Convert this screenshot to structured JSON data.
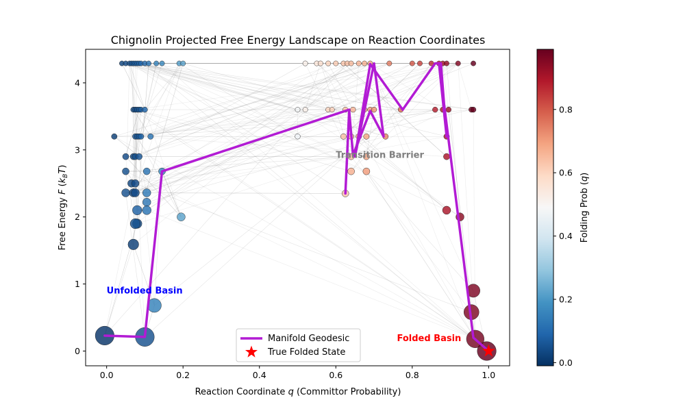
{
  "chart_data": {
    "type": "scatter",
    "title": "Chignolin Projected Free Energy Landscape on Reaction Coordinates",
    "xlabel": "Reaction Coordinate q (Committor Probability)",
    "ylabel": "Free Energy F (k_BT)",
    "xlim": [
      -0.055,
      1.055
    ],
    "ylim": [
      -0.22,
      4.5
    ],
    "xticks": [
      0.0,
      0.2,
      0.4,
      0.6,
      0.8,
      1.0
    ],
    "xtick_labels": [
      "0.0",
      "0.2",
      "0.4",
      "0.6",
      "0.8",
      "1.0"
    ],
    "yticks": [
      0,
      1,
      2,
      3,
      4
    ],
    "ytick_labels": [
      "0",
      "1",
      "2",
      "3",
      "4"
    ],
    "grid": false,
    "colorbar": {
      "label": "Folding Prob (q)",
      "colormap": "RdBu_r",
      "range": [
        -0.01,
        0.99
      ],
      "ticks": [
        0.0,
        0.2,
        0.4,
        0.6,
        0.8
      ],
      "tick_labels": [
        "0.0",
        "0.2",
        "0.4",
        "0.6",
        "0.8"
      ]
    },
    "annotations": [
      {
        "text": "Unfolded Basin",
        "x": 0.0,
        "y": 0.86,
        "color": "#0000ff",
        "anchor": "start"
      },
      {
        "text": "Transition Barrier",
        "x": 0.6,
        "y": 2.88,
        "color": "#808080",
        "anchor": "start"
      },
      {
        "text": "Folded Basin",
        "x": 0.76,
        "y": 0.15,
        "color": "#ff0000",
        "anchor": "start"
      }
    ],
    "legend": {
      "position": "bottom-center",
      "entries": [
        "Manifold Geodesic",
        "True Folded State"
      ]
    },
    "geodesic": {
      "name": "Manifold Geodesic",
      "color": "#b21bd4",
      "points": [
        [
          -0.005,
          0.23
        ],
        [
          0.1,
          0.21
        ],
        [
          0.145,
          2.68
        ],
        [
          0.635,
          3.6
        ],
        [
          0.625,
          2.35
        ],
        [
          0.635,
          3.58
        ],
        [
          0.645,
          2.92
        ],
        [
          0.69,
          3.58
        ],
        [
          0.725,
          3.2
        ],
        [
          0.7,
          4.29
        ],
        [
          0.65,
          2.9
        ],
        [
          0.69,
          4.28
        ],
        [
          0.775,
          3.6
        ],
        [
          0.86,
          4.29
        ],
        [
          0.875,
          4.29
        ],
        [
          0.89,
          3.2
        ],
        [
          0.87,
          4.29
        ],
        [
          0.96,
          0.2
        ],
        [
          1.0,
          0.0
        ]
      ]
    },
    "true_folded_state": {
      "name": "True Folded State",
      "x": 1.0,
      "y": 0.0,
      "color": "#ff0000"
    },
    "states": [
      [
        -0.005,
        0.23,
        0.0,
        3.0
      ],
      [
        0.1,
        0.21,
        0.05,
        3.0
      ],
      [
        0.125,
        0.68,
        0.15,
        2.2
      ],
      [
        0.07,
        1.59,
        0.02,
        1.7
      ],
      [
        0.075,
        1.9,
        0.05,
        1.6
      ],
      [
        0.08,
        1.9,
        0.05,
        1.5
      ],
      [
        0.08,
        2.1,
        0.08,
        1.5
      ],
      [
        0.105,
        2.1,
        0.12,
        1.4
      ],
      [
        0.105,
        2.22,
        0.13,
        1.3
      ],
      [
        0.105,
        2.36,
        0.14,
        1.3
      ],
      [
        0.05,
        2.36,
        0.05,
        1.3
      ],
      [
        0.07,
        2.36,
        0.03,
        1.3
      ],
      [
        0.075,
        2.36,
        0.04,
        1.3
      ],
      [
        0.065,
        2.5,
        0.03,
        1.2
      ],
      [
        0.075,
        2.5,
        0.04,
        1.2
      ],
      [
        0.05,
        2.68,
        0.05,
        1.1
      ],
      [
        0.105,
        2.68,
        0.12,
        1.1
      ],
      [
        0.145,
        2.68,
        0.16,
        1.1
      ],
      [
        0.195,
        2.0,
        0.22,
        1.3
      ],
      [
        0.05,
        2.9,
        0.04,
        1.0
      ],
      [
        0.07,
        2.9,
        0.03,
        1.0
      ],
      [
        0.075,
        2.9,
        0.05,
        1.0
      ],
      [
        0.085,
        2.9,
        0.06,
        1.0
      ],
      [
        0.02,
        3.2,
        0.02,
        0.9
      ],
      [
        0.075,
        3.2,
        0.05,
        0.9
      ],
      [
        0.08,
        3.2,
        0.06,
        0.9
      ],
      [
        0.085,
        3.2,
        0.07,
        0.9
      ],
      [
        0.09,
        3.2,
        0.08,
        0.9
      ],
      [
        0.115,
        3.2,
        0.12,
        0.9
      ],
      [
        0.07,
        3.6,
        0.03,
        0.85
      ],
      [
        0.075,
        3.6,
        0.04,
        0.85
      ],
      [
        0.08,
        3.6,
        0.05,
        0.85
      ],
      [
        0.085,
        3.6,
        0.06,
        0.85
      ],
      [
        0.09,
        3.6,
        0.07,
        0.85
      ],
      [
        0.1,
        3.6,
        0.09,
        0.85
      ],
      [
        0.04,
        4.29,
        0.03,
        0.8
      ],
      [
        0.05,
        4.29,
        0.04,
        0.8
      ],
      [
        0.06,
        4.29,
        0.05,
        0.8
      ],
      [
        0.065,
        4.29,
        0.06,
        0.8
      ],
      [
        0.07,
        4.29,
        0.06,
        0.8
      ],
      [
        0.075,
        4.29,
        0.07,
        0.8
      ],
      [
        0.08,
        4.29,
        0.07,
        0.8
      ],
      [
        0.085,
        4.29,
        0.08,
        0.8
      ],
      [
        0.09,
        4.29,
        0.09,
        0.8
      ],
      [
        0.1,
        4.29,
        0.1,
        0.8
      ],
      [
        0.11,
        4.29,
        0.12,
        0.8
      ],
      [
        0.13,
        4.29,
        0.15,
        0.8
      ],
      [
        0.145,
        4.29,
        0.17,
        0.8
      ],
      [
        0.19,
        4.29,
        0.21,
        0.8
      ],
      [
        0.2,
        4.29,
        0.22,
        0.8
      ],
      [
        0.5,
        3.6,
        0.48,
        0.8
      ],
      [
        0.5,
        3.2,
        0.47,
        0.85
      ],
      [
        0.52,
        3.6,
        0.52,
        0.8
      ],
      [
        0.52,
        4.29,
        0.52,
        0.8
      ],
      [
        0.55,
        4.29,
        0.55,
        0.8
      ],
      [
        0.56,
        4.29,
        0.57,
        0.8
      ],
      [
        0.58,
        4.29,
        0.6,
        0.8
      ],
      [
        0.6,
        4.29,
        0.62,
        0.8
      ],
      [
        0.62,
        4.29,
        0.63,
        0.8
      ],
      [
        0.63,
        4.29,
        0.64,
        0.8
      ],
      [
        0.64,
        4.29,
        0.65,
        0.8
      ],
      [
        0.66,
        4.29,
        0.66,
        0.8
      ],
      [
        0.675,
        4.29,
        0.67,
        0.8
      ],
      [
        0.69,
        4.29,
        0.68,
        0.8
      ],
      [
        0.58,
        3.6,
        0.6,
        0.8
      ],
      [
        0.59,
        3.6,
        0.61,
        0.8
      ],
      [
        0.625,
        3.6,
        0.64,
        0.85
      ],
      [
        0.645,
        3.6,
        0.66,
        0.85
      ],
      [
        0.675,
        3.6,
        0.69,
        0.85
      ],
      [
        0.69,
        3.6,
        0.7,
        0.85
      ],
      [
        0.7,
        3.6,
        0.71,
        0.85
      ],
      [
        0.62,
        3.2,
        0.64,
        0.9
      ],
      [
        0.64,
        3.2,
        0.66,
        0.9
      ],
      [
        0.66,
        3.2,
        0.68,
        0.9
      ],
      [
        0.68,
        3.2,
        0.69,
        0.9
      ],
      [
        0.73,
        3.2,
        0.74,
        0.9
      ],
      [
        0.64,
        2.9,
        0.65,
        1.0
      ],
      [
        0.68,
        2.9,
        0.69,
        1.0
      ],
      [
        0.64,
        2.68,
        0.67,
        1.1
      ],
      [
        0.68,
        2.68,
        0.7,
        1.1
      ],
      [
        0.625,
        2.35,
        0.63,
        1.1
      ],
      [
        0.74,
        4.29,
        0.75,
        0.8
      ],
      [
        0.77,
        3.6,
        0.77,
        0.85
      ],
      [
        0.8,
        4.29,
        0.8,
        0.8
      ],
      [
        0.82,
        4.29,
        0.83,
        0.8
      ],
      [
        0.85,
        4.29,
        0.86,
        0.8
      ],
      [
        0.87,
        4.29,
        0.89,
        0.8
      ],
      [
        0.88,
        4.29,
        0.91,
        0.8
      ],
      [
        0.89,
        4.29,
        0.93,
        0.8
      ],
      [
        0.92,
        4.29,
        0.95,
        0.8
      ],
      [
        0.96,
        4.29,
        0.99,
        0.8
      ],
      [
        0.86,
        3.6,
        0.88,
        0.85
      ],
      [
        0.88,
        3.6,
        0.9,
        0.85
      ],
      [
        0.895,
        3.6,
        0.92,
        0.85
      ],
      [
        0.955,
        3.6,
        0.97,
        0.85
      ],
      [
        0.96,
        3.6,
        0.99,
        0.85
      ],
      [
        0.89,
        3.2,
        0.91,
        0.9
      ],
      [
        0.89,
        2.9,
        0.9,
        1.0
      ],
      [
        0.89,
        2.1,
        0.9,
        1.3
      ],
      [
        0.925,
        2.0,
        0.94,
        1.3
      ],
      [
        0.96,
        0.9,
        0.96,
        2.1
      ],
      [
        0.955,
        0.58,
        0.96,
        2.4
      ],
      [
        0.965,
        0.18,
        0.97,
        2.8
      ],
      [
        0.995,
        0.0,
        0.99,
        3.0
      ]
    ]
  }
}
